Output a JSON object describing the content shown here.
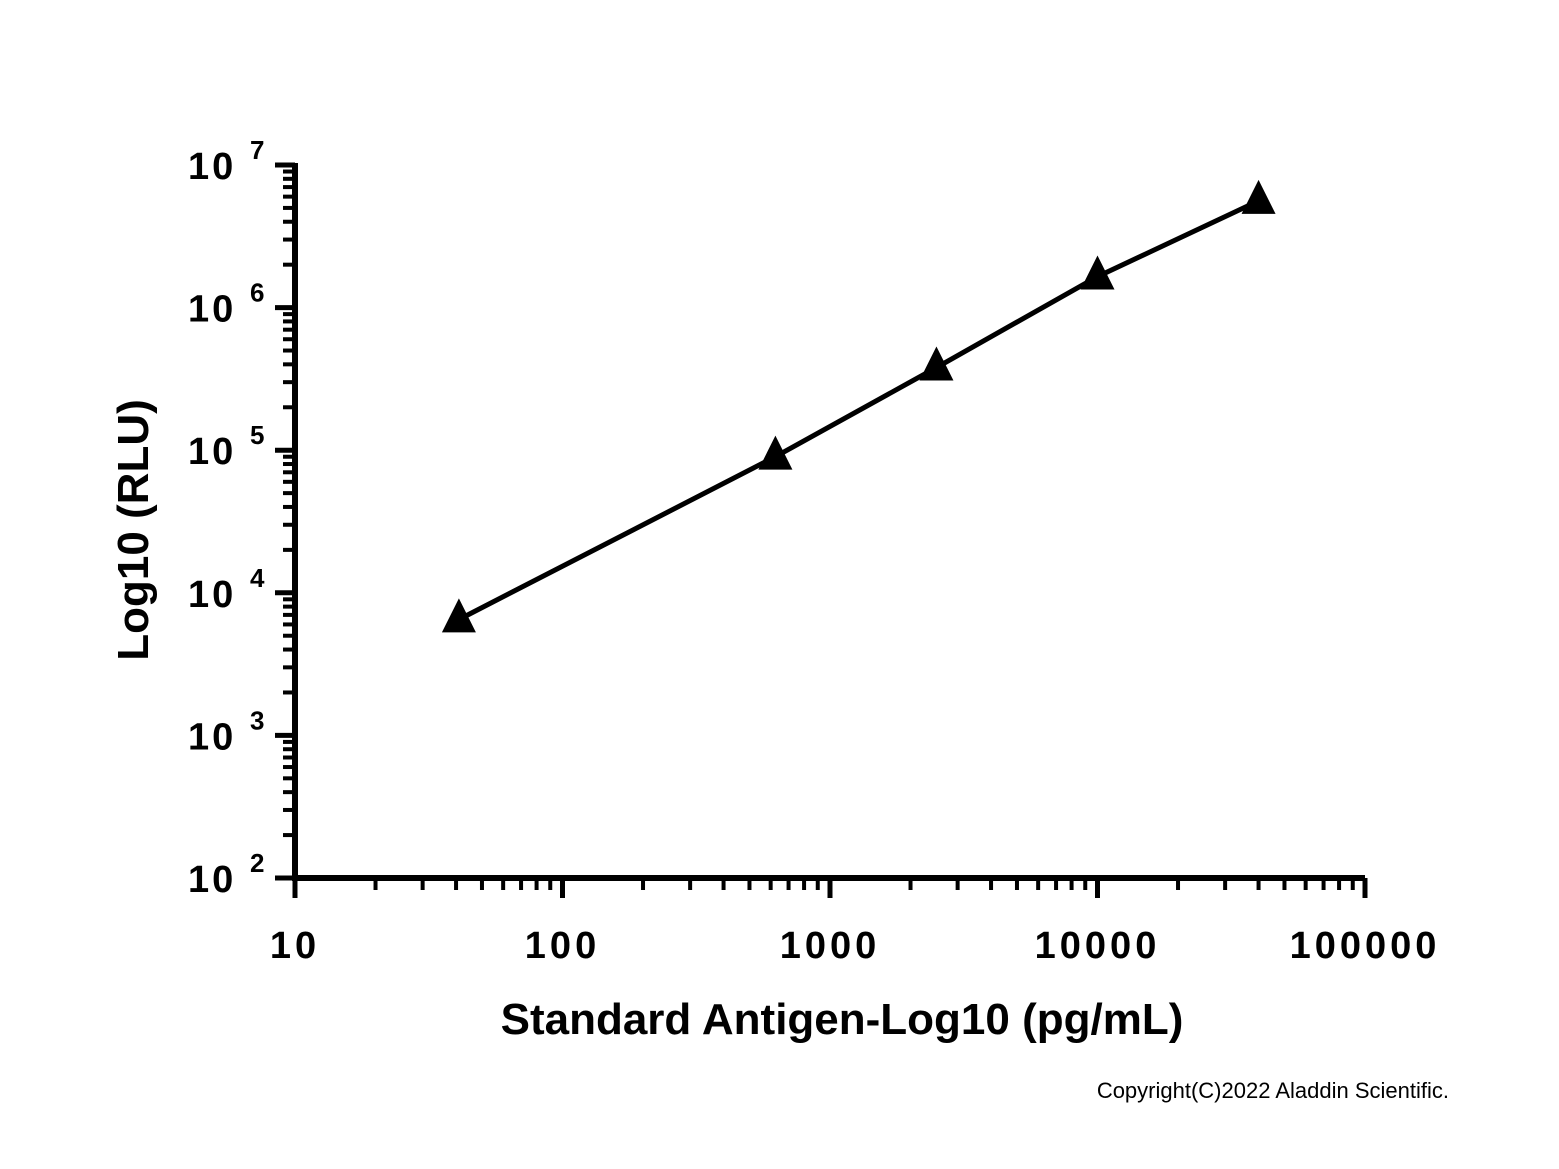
{
  "chart_data": {
    "type": "line",
    "xlabel": "Standard Antigen-Log10 (pg/mL)",
    "ylabel": "Log10 (RLU)",
    "x_scale": "log",
    "y_scale": "log",
    "xlim": [
      10,
      100000
    ],
    "ylim": [
      100,
      10000000
    ],
    "x_ticks": [
      "10",
      "100",
      "1000",
      "10000",
      "100000"
    ],
    "y_ticks": [
      {
        "base": "10",
        "exp": "2",
        "value": 100
      },
      {
        "base": "10",
        "exp": "3",
        "value": 1000
      },
      {
        "base": "10",
        "exp": "4",
        "value": 10000
      },
      {
        "base": "10",
        "exp": "5",
        "value": 100000
      },
      {
        "base": "10",
        "exp": "6",
        "value": 1000000
      },
      {
        "base": "10",
        "exp": "7",
        "value": 10000000
      }
    ],
    "grid": false,
    "series": [
      {
        "marker": "triangle",
        "color": "#000000",
        "points": [
          {
            "x": 41,
            "y": 6500
          },
          {
            "x": 625,
            "y": 90000
          },
          {
            "x": 2500,
            "y": 380000
          },
          {
            "x": 10000,
            "y": 1650000
          },
          {
            "x": 40000,
            "y": 5600000
          }
        ]
      }
    ]
  },
  "copyright": "Copyright(C)2022 Aladdin Scientific."
}
